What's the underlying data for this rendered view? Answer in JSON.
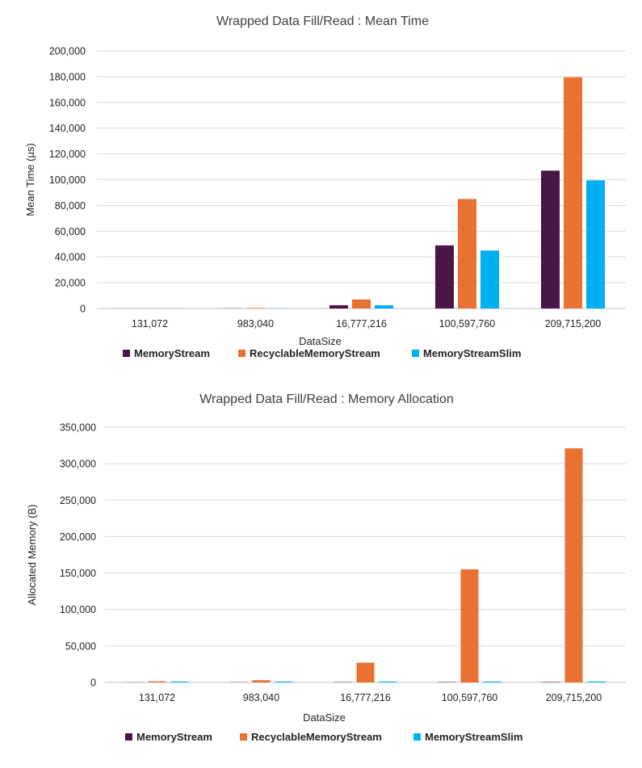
{
  "chart_data": [
    {
      "type": "bar",
      "title": "Wrapped Data Fill/Read : Mean Time",
      "xlabel": "DataSize",
      "ylabel": "Mean Time (μs)",
      "categories": [
        "131,072",
        "983,040",
        "16,777,216",
        "100,597,760",
        "209,715,200"
      ],
      "ylim": [
        0,
        200000
      ],
      "yticks": [
        0,
        20000,
        40000,
        60000,
        80000,
        100000,
        120000,
        140000,
        160000,
        180000,
        200000
      ],
      "yticklabels": [
        "0",
        "20,000",
        "40,000",
        "60,000",
        "80,000",
        "100,000",
        "120,000",
        "140,000",
        "160,000",
        "180,000",
        "200,000"
      ],
      "grid": true,
      "legend_position": "bottom",
      "series": [
        {
          "name": "MemoryStream",
          "color": "#4B1548",
          "values": [
            20,
            150,
            2500,
            49000,
            107000
          ]
        },
        {
          "name": "RecyclableMemoryStream",
          "color": "#E97132",
          "values": [
            60,
            400,
            7000,
            85000,
            179500
          ]
        },
        {
          "name": "MemoryStreamSlim",
          "color": "#00B0F0",
          "values": [
            20,
            140,
            2500,
            45000,
            99500
          ]
        }
      ]
    },
    {
      "type": "bar",
      "title": "Wrapped Data Fill/Read  : Memory Allocation",
      "xlabel": "DataSize",
      "ylabel": "Allocated Memory (B)",
      "categories": [
        "131,072",
        "983,040",
        "16,777,216",
        "100,597,760",
        "209,715,200"
      ],
      "ylim": [
        0,
        350000
      ],
      "yticks": [
        0,
        50000,
        100000,
        150000,
        200000,
        250000,
        300000,
        350000
      ],
      "yticklabels": [
        "0",
        "50,000",
        "100,000",
        "150,000",
        "200,000",
        "250,000",
        "300,000",
        "350,000"
      ],
      "grid": true,
      "legend_position": "bottom",
      "series": [
        {
          "name": "MemoryStream",
          "color": "#4B1548",
          "values": [
            200,
            300,
            400,
            500,
            600
          ]
        },
        {
          "name": "RecyclableMemoryStream",
          "color": "#E97132",
          "values": [
            1500,
            3000,
            27000,
            155000,
            321000
          ]
        },
        {
          "name": "MemoryStreamSlim",
          "color": "#00B0F0",
          "values": [
            1200,
            1200,
            1200,
            1200,
            1200
          ]
        }
      ]
    }
  ]
}
